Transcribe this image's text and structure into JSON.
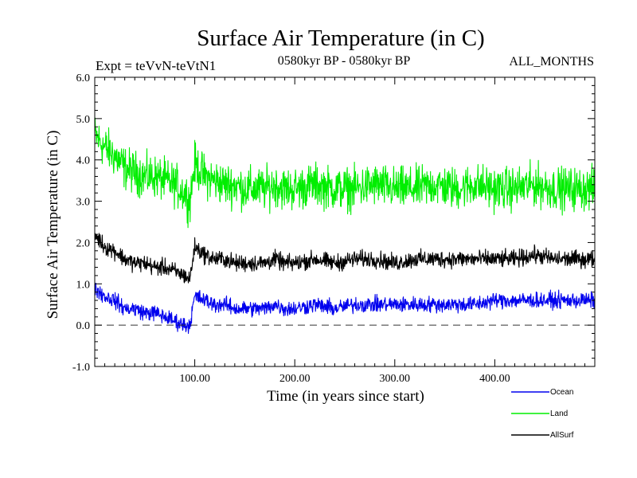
{
  "chart_data": {
    "type": "line",
    "title": "Surface Air Temperature (in C)",
    "subtitle_left": "Expt = teVvN-teVtN1",
    "subtitle_center": "0580kyr BP - 0580kyr BP",
    "subtitle_right": "ALL_MONTHS",
    "xlabel": "Time (in years since start)",
    "ylabel": "Surface Air Temperature (in C)",
    "xlim": [
      0,
      500
    ],
    "ylim": [
      -1.0,
      6.0
    ],
    "xticks": [
      100,
      200,
      300,
      400
    ],
    "xtick_labels": [
      "100.00",
      "200.00",
      "300.00",
      "400.00"
    ],
    "yticks": [
      -1.0,
      0.0,
      1.0,
      2.0,
      3.0,
      4.0,
      5.0,
      6.0
    ],
    "ytick_labels": [
      "-1.0",
      "0.0",
      "1.0",
      "2.0",
      "3.0",
      "4.0",
      "5.0",
      "6.0"
    ],
    "reference_line": 0.0,
    "legend_position": "bottom-right",
    "series": [
      {
        "name": "Land",
        "color": "#00ee00",
        "x": [
          0,
          10,
          20,
          30,
          40,
          50,
          60,
          70,
          80,
          90,
          95,
          100,
          110,
          120,
          130,
          140,
          150,
          160,
          170,
          180,
          190,
          200,
          220,
          240,
          260,
          280,
          300,
          320,
          340,
          360,
          380,
          400,
          420,
          440,
          460,
          480,
          500
        ],
        "values": [
          4.6,
          4.3,
          4.1,
          3.8,
          3.7,
          3.6,
          3.6,
          3.5,
          3.4,
          3.2,
          3.0,
          3.9,
          3.6,
          3.5,
          3.4,
          3.4,
          3.3,
          3.3,
          3.3,
          3.4,
          3.3,
          3.3,
          3.4,
          3.3,
          3.3,
          3.4,
          3.3,
          3.3,
          3.4,
          3.3,
          3.4,
          3.3,
          3.3,
          3.4,
          3.3,
          3.3,
          3.3
        ]
      },
      {
        "name": "AllSurf",
        "color": "#000000",
        "x": [
          0,
          10,
          20,
          30,
          40,
          50,
          60,
          70,
          80,
          90,
          95,
          100,
          110,
          120,
          130,
          140,
          150,
          160,
          170,
          180,
          190,
          200,
          220,
          240,
          260,
          280,
          300,
          320,
          340,
          360,
          380,
          400,
          420,
          440,
          460,
          480,
          500
        ],
        "values": [
          2.2,
          1.9,
          1.8,
          1.6,
          1.5,
          1.5,
          1.4,
          1.4,
          1.3,
          1.2,
          1.1,
          1.9,
          1.7,
          1.6,
          1.6,
          1.5,
          1.5,
          1.5,
          1.5,
          1.6,
          1.5,
          1.5,
          1.6,
          1.5,
          1.6,
          1.6,
          1.5,
          1.6,
          1.6,
          1.6,
          1.6,
          1.6,
          1.6,
          1.7,
          1.6,
          1.6,
          1.6
        ]
      },
      {
        "name": "Ocean",
        "color": "#0000ee",
        "x": [
          0,
          10,
          20,
          30,
          40,
          50,
          60,
          70,
          80,
          90,
          95,
          100,
          110,
          120,
          130,
          140,
          150,
          160,
          170,
          180,
          190,
          200,
          220,
          240,
          260,
          280,
          300,
          320,
          340,
          360,
          380,
          400,
          420,
          440,
          460,
          480,
          500
        ],
        "values": [
          0.9,
          0.7,
          0.6,
          0.4,
          0.4,
          0.3,
          0.3,
          0.2,
          0.1,
          0.0,
          0.0,
          0.7,
          0.6,
          0.5,
          0.5,
          0.4,
          0.4,
          0.4,
          0.4,
          0.5,
          0.4,
          0.4,
          0.5,
          0.4,
          0.5,
          0.5,
          0.5,
          0.5,
          0.5,
          0.5,
          0.5,
          0.6,
          0.6,
          0.6,
          0.6,
          0.6,
          0.6
        ]
      }
    ],
    "legend": [
      {
        "name": "Ocean",
        "color": "#0000ee"
      },
      {
        "name": "Land",
        "color": "#00ee00"
      },
      {
        "name": "AllSurf",
        "color": "#000000"
      }
    ],
    "noise_amplitude": {
      "Land": 0.75,
      "AllSurf": 0.3,
      "Ocean": 0.28
    }
  }
}
